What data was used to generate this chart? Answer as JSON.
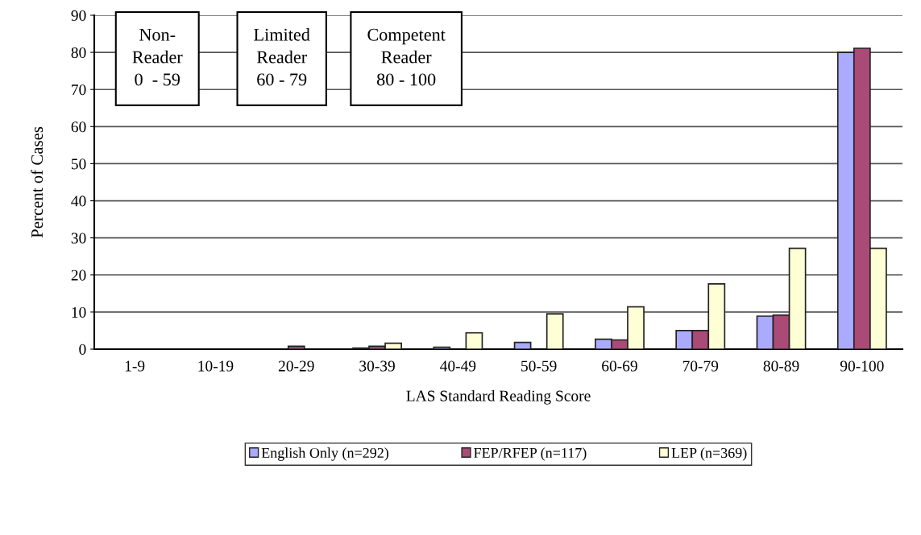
{
  "chart_data": {
    "type": "bar",
    "xlabel": "LAS Standard Reading Score",
    "ylabel": "Percent of Cases",
    "categories": [
      "1-9",
      "10-19",
      "20-29",
      "30-39",
      "40-49",
      "50-59",
      "60-69",
      "70-79",
      "80-89",
      "90-100"
    ],
    "series": [
      {
        "name": "English Only (n=292)",
        "color": "#aaaaff",
        "values": [
          0,
          0,
          0,
          0.3,
          0.5,
          1.8,
          2.7,
          5,
          8.9,
          80
        ]
      },
      {
        "name": "FEP/RFEP (n=117)",
        "color": "#a94a77",
        "values": [
          0,
          0,
          0.8,
          0.8,
          0,
          0,
          2.5,
          5,
          9.2,
          81.1
        ]
      },
      {
        "name": "LEP (n=369)",
        "color": "#ffffd5",
        "values": [
          0,
          0,
          0,
          1.6,
          4.4,
          9.5,
          11.4,
          17.6,
          27.2,
          27.2
        ]
      }
    ],
    "ylim": [
      0,
      90
    ],
    "yticks": [
      0,
      10,
      20,
      30,
      40,
      50,
      60,
      70,
      80,
      90
    ],
    "grid": "y",
    "legend": "bottom",
    "annotations": [
      "Non-\nReader\n0  - 59",
      "Limited\nReader\n60 - 79",
      "Competent\nReader\n80 - 100"
    ]
  }
}
